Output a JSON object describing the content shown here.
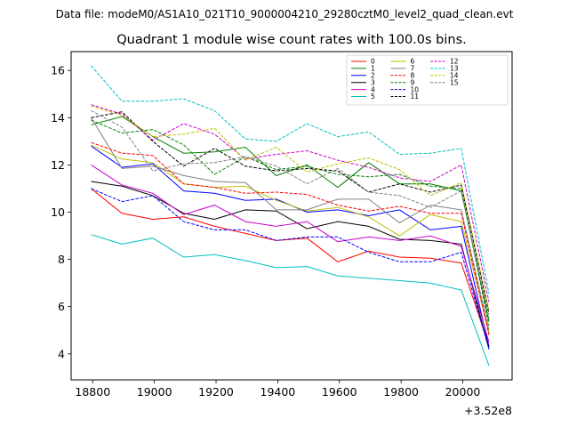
{
  "header": {
    "data_file_line": "Data file: modeM0/AS1A10_021T10_9000004210_29280cztM0_level2_quad_clean.evt"
  },
  "chart_data": {
    "type": "line",
    "title": "Quadrant 1 module wise count rates with 100.0s bins.",
    "xlabel": "",
    "ylabel": "",
    "x_offset_label": "+3.52e8",
    "x": [
      18795,
      18895,
      18995,
      19095,
      19195,
      19295,
      19395,
      19495,
      19595,
      19695,
      19795,
      19895,
      19995,
      20085
    ],
    "xlim": [
      18730,
      20160
    ],
    "ylim": [
      2.9,
      16.8
    ],
    "xticks": [
      18800,
      19000,
      19200,
      19400,
      19600,
      19800,
      20000
    ],
    "yticks": [
      4,
      6,
      8,
      10,
      12,
      14,
      16
    ],
    "grid": false,
    "legend_position": "top-right",
    "series": [
      {
        "name": "0",
        "color": "#ff0000",
        "dashed": false,
        "values": [
          11.0,
          9.95,
          9.7,
          9.8,
          9.4,
          9.1,
          8.8,
          8.9,
          7.9,
          8.35,
          8.1,
          8.05,
          7.85,
          4.35
        ]
      },
      {
        "name": "1",
        "color": "#008000",
        "dashed": false,
        "values": [
          13.7,
          14.05,
          13.2,
          12.5,
          12.55,
          12.75,
          11.55,
          12.0,
          11.05,
          12.1,
          11.2,
          11.2,
          10.9,
          5.4
        ]
      },
      {
        "name": "2",
        "color": "#0000ff",
        "dashed": false,
        "values": [
          12.8,
          11.9,
          12.05,
          10.9,
          10.8,
          10.5,
          10.55,
          10.0,
          10.1,
          9.85,
          10.1,
          9.25,
          9.4,
          4.3
        ]
      },
      {
        "name": "3",
        "color": "#000000",
        "dashed": false,
        "values": [
          11.3,
          11.1,
          10.7,
          9.95,
          9.7,
          10.1,
          10.05,
          9.3,
          9.6,
          9.4,
          8.85,
          8.8,
          8.65,
          4.2
        ]
      },
      {
        "name": "4",
        "color": "#cc00cc",
        "dashed": false,
        "values": [
          12.0,
          11.15,
          10.8,
          9.9,
          10.3,
          9.6,
          9.4,
          9.6,
          8.75,
          8.95,
          8.8,
          9.0,
          8.55,
          4.5
        ]
      },
      {
        "name": "5",
        "color": "#00bfbf",
        "dashed": false,
        "values": [
          9.05,
          8.65,
          8.9,
          8.1,
          8.2,
          7.95,
          7.65,
          7.7,
          7.3,
          7.2,
          7.1,
          7.0,
          6.7,
          3.5
        ]
      },
      {
        "name": "6",
        "color": "#bfbf00",
        "dashed": false,
        "values": [
          12.85,
          12.25,
          12.1,
          11.2,
          11.05,
          11.1,
          10.5,
          10.05,
          10.2,
          9.8,
          9.0,
          9.9,
          9.6,
          4.9
        ]
      },
      {
        "name": "7",
        "color": "#808080",
        "dashed": false,
        "values": [
          14.0,
          11.85,
          11.95,
          11.55,
          11.3,
          11.25,
          10.1,
          10.1,
          10.55,
          10.55,
          9.55,
          10.3,
          10.1,
          5.0
        ]
      },
      {
        "name": "8",
        "color": "#ff0000",
        "dashed": true,
        "values": [
          12.95,
          12.5,
          12.4,
          11.2,
          11.05,
          10.8,
          10.85,
          10.75,
          10.3,
          10.05,
          10.25,
          9.95,
          9.95,
          4.8
        ]
      },
      {
        "name": "9",
        "color": "#008000",
        "dashed": true,
        "values": [
          13.9,
          13.35,
          13.5,
          12.85,
          11.6,
          12.35,
          11.8,
          11.95,
          11.6,
          11.5,
          11.6,
          11.1,
          11.0,
          5.2
        ]
      },
      {
        "name": "10",
        "color": "#0000ff",
        "dashed": true,
        "values": [
          11.0,
          10.45,
          10.7,
          9.6,
          9.25,
          9.25,
          8.8,
          8.95,
          8.95,
          8.3,
          7.9,
          7.9,
          8.3,
          4.2
        ]
      },
      {
        "name": "11",
        "color": "#000000",
        "dashed": true,
        "values": [
          14.0,
          14.25,
          13.0,
          11.95,
          12.7,
          11.95,
          11.75,
          11.85,
          11.75,
          10.85,
          11.2,
          10.85,
          11.15,
          5.7
        ]
      },
      {
        "name": "12",
        "color": "#cc00cc",
        "dashed": true,
        "values": [
          14.55,
          14.15,
          13.05,
          13.75,
          13.3,
          12.25,
          12.45,
          12.6,
          12.2,
          11.9,
          11.45,
          11.3,
          12.0,
          6.2
        ]
      },
      {
        "name": "13",
        "color": "#00bfbf",
        "dashed": true,
        "values": [
          16.2,
          14.7,
          14.7,
          14.8,
          14.3,
          13.1,
          13.0,
          13.75,
          13.2,
          13.4,
          12.45,
          12.5,
          12.7,
          6.55
        ]
      },
      {
        "name": "14",
        "color": "#bfbf00",
        "dashed": true,
        "values": [
          14.5,
          14.1,
          13.2,
          13.3,
          13.55,
          12.2,
          12.75,
          11.7,
          12.05,
          12.3,
          11.8,
          10.7,
          11.25,
          5.9
        ]
      },
      {
        "name": "15",
        "color": "#808080",
        "dashed": true,
        "values": [
          14.3,
          13.6,
          11.75,
          12.05,
          12.1,
          12.35,
          11.95,
          11.2,
          11.85,
          10.85,
          10.7,
          10.2,
          10.9,
          5.5
        ]
      }
    ]
  }
}
